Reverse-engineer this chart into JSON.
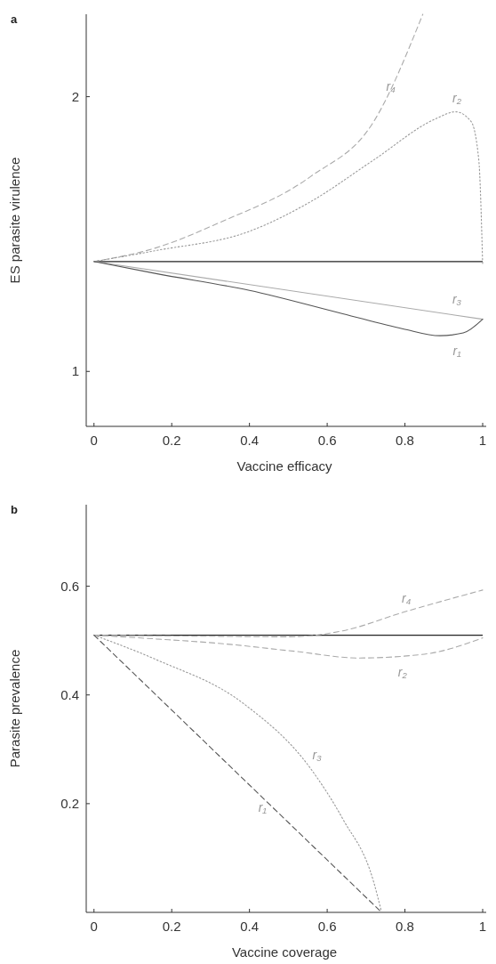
{
  "chart_data": [
    {
      "type": "line",
      "title": "a",
      "xlabel": "Vaccine efficacy",
      "ylabel": "ES parasite virulence",
      "xlim": [
        -0.02,
        1.0
      ],
      "ylim": [
        0.8,
        2.3
      ],
      "xticks": [
        0,
        0.2,
        0.4,
        0.6,
        0.8,
        1
      ],
      "yticks": [
        1,
        2
      ],
      "grid": false,
      "ref_lines": [
        {
          "axis": "y",
          "value": 1.4,
          "color": "#222222",
          "line_style": "solid"
        }
      ],
      "series": [
        {
          "color": "#aaaaaa",
          "line_style": "dashed",
          "x": [
            0,
            0.16,
            0.32,
            0.558,
            0.72,
            0.846
          ],
          "values": [
            1.4,
            1.45,
            1.54,
            1.71,
            1.91,
            2.3
          ]
        },
        {
          "color": "#999999",
          "line_style": "dotted",
          "x": [
            0,
            0.16,
            0.4,
            0.56,
            0.72,
            0.88,
            0.93,
            0.97,
            0.99,
            1.0
          ],
          "values": [
            1.4,
            1.44,
            1.51,
            1.62,
            1.77,
            1.92,
            1.945,
            1.91,
            1.77,
            1.39
          ]
        },
        {
          "color": "#aaaaaa",
          "line_style": "solid",
          "x": [
            0,
            1.0
          ],
          "values": [
            1.4,
            1.19
          ]
        },
        {
          "color": "#555555",
          "line_style": "solid",
          "x": [
            0,
            0.16,
            0.4,
            0.64,
            0.795,
            0.89,
            0.95,
            1.0
          ],
          "values": [
            1.4,
            1.356,
            1.295,
            1.21,
            1.155,
            1.13,
            1.14,
            1.19
          ]
        }
      ],
      "annotations": [
        {
          "text": "r₄",
          "x": 0.75,
          "y": 1.98
        },
        {
          "text": "r₂",
          "x": 0.92,
          "y": 1.94
        },
        {
          "text": "r₃",
          "x": 0.92,
          "y": 1.207
        },
        {
          "text": "r₁",
          "x": 0.92,
          "y": 1.13
        }
      ]
    },
    {
      "type": "line",
      "title": "b",
      "xlabel": "Vaccine coverage",
      "ylabel": "Parasite prevalence",
      "xlim": [
        -0.02,
        1.0
      ],
      "ylim": [
        0,
        0.75
      ],
      "xticks": [
        0,
        0.2,
        0.4,
        0.6,
        0.8,
        1
      ],
      "yticks": [
        0.2,
        0.4,
        0.6
      ],
      "grid": false,
      "ref_lines": [
        {
          "axis": "y",
          "value": 0.51,
          "color": "#222222",
          "line_style": "solid"
        }
      ],
      "series": [
        {
          "color": "#aaaaaa",
          "line_style": "dashed",
          "x": [
            0,
            0.3,
            0.5,
            0.64,
            0.8,
            1.0
          ],
          "values": [
            0.51,
            0.508,
            0.507,
            0.518,
            0.553,
            0.593
          ]
        },
        {
          "color": "#aaaaaa",
          "line_style": "dashed",
          "x": [
            0,
            0.16,
            0.32,
            0.52,
            0.68,
            0.85,
            1.0
          ],
          "values": [
            0.51,
            0.503,
            0.495,
            0.48,
            0.468,
            0.475,
            0.505
          ]
        },
        {
          "color": "#999999",
          "line_style": "dotted",
          "x": [
            0,
            0.16,
            0.385,
            0.56,
            0.64,
            0.72,
            0.74
          ],
          "values": [
            0.51,
            0.465,
            0.384,
            0.262,
            0.172,
            0.055,
            0
          ]
        },
        {
          "color": "#555555",
          "line_style": "dashed",
          "x": [
            0,
            0.74
          ],
          "values": [
            0.51,
            0
          ]
        }
      ],
      "annotations": [
        {
          "text": "r₄",
          "x": 0.79,
          "y": 0.55
        },
        {
          "text": "r₂",
          "x": 0.78,
          "y": 0.47
        },
        {
          "text": "r₃",
          "x": 0.56,
          "y": 0.262
        },
        {
          "text": "r₁",
          "x": 0.42,
          "y": 0.22
        }
      ]
    }
  ]
}
